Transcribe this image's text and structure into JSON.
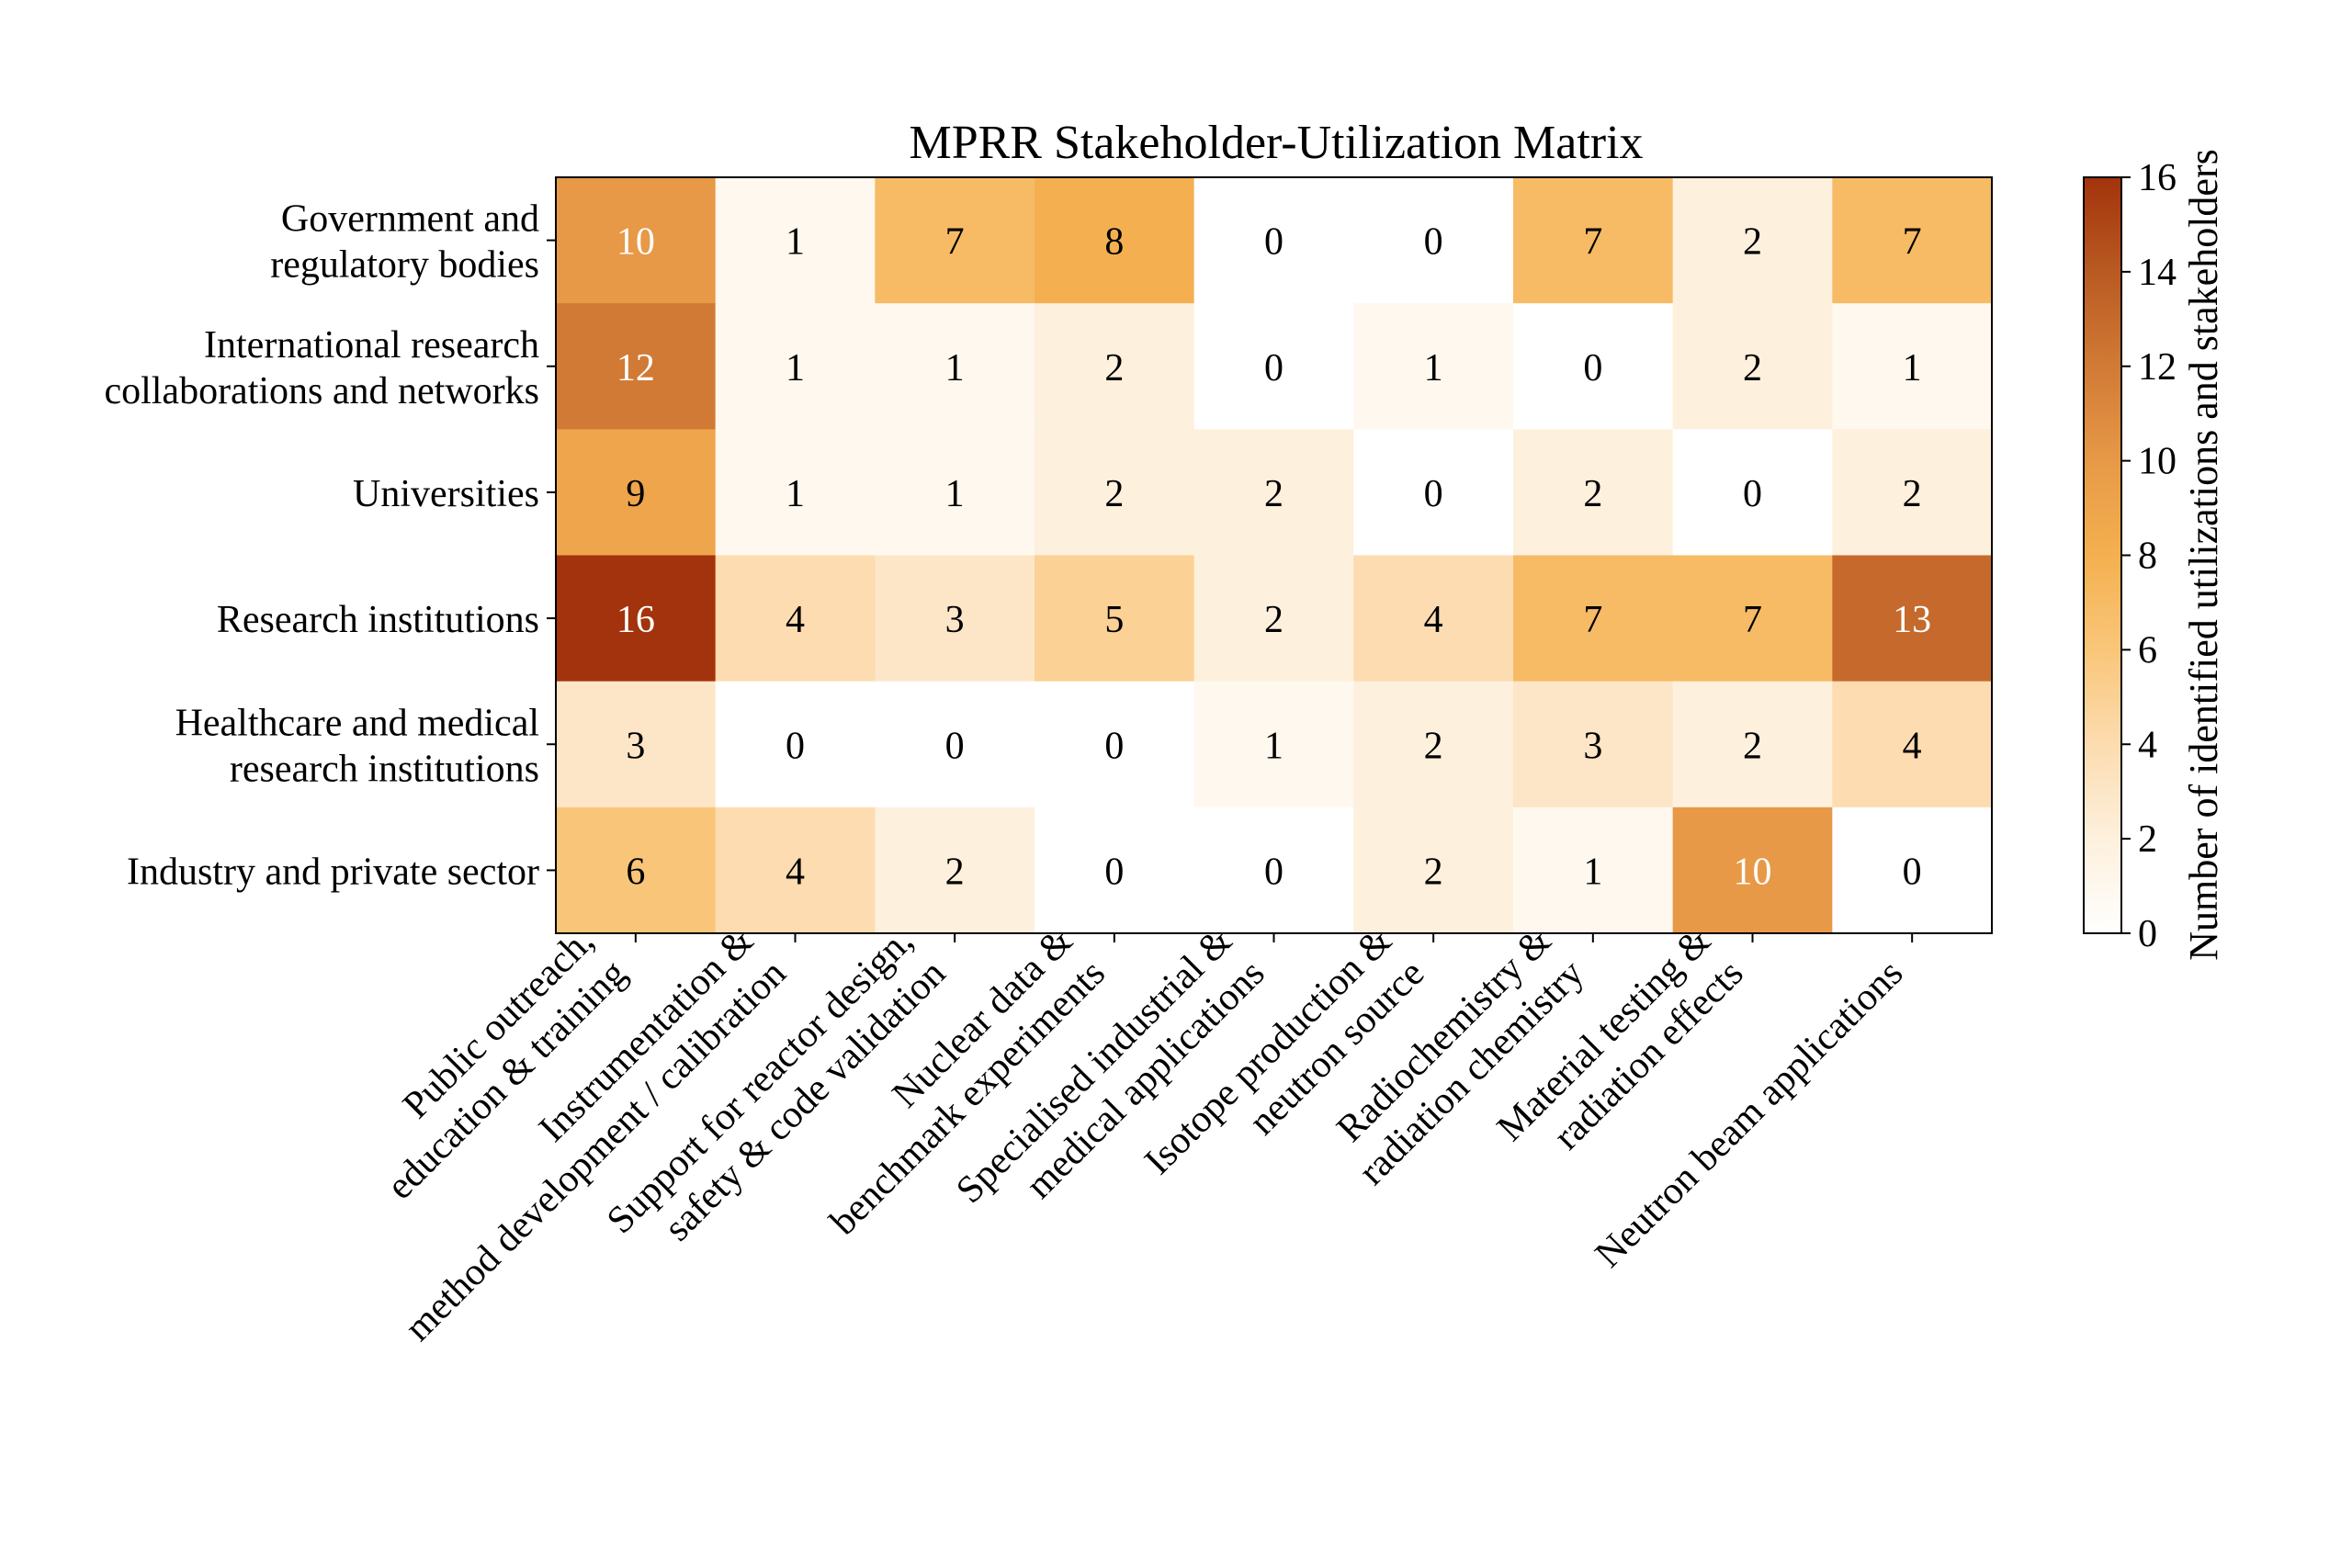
{
  "chart_data": {
    "type": "heatmap",
    "title": "MPRR Stakeholder-Utilization Matrix",
    "rows": [
      [
        "Government and",
        "regulatory bodies"
      ],
      [
        "International research",
        "collaborations and networks"
      ],
      [
        "Universities"
      ],
      [
        "Research institutions"
      ],
      [
        "Healthcare and medical",
        "research institutions"
      ],
      [
        "Industry and private sector"
      ]
    ],
    "columns": [
      [
        "Public outreach,",
        "education & training"
      ],
      [
        "Instrumentation &",
        "method development / calibration"
      ],
      [
        "Support for reactor design,",
        "safety & code validation"
      ],
      [
        "Nuclear data &",
        "benchmark experiments"
      ],
      [
        "Specialised industrial &",
        "medical applications"
      ],
      [
        "Isotope production &",
        "neutron source"
      ],
      [
        "Radiochemistry &",
        "radiation chemistry"
      ],
      [
        "Material testing &",
        "radiation effects"
      ],
      [
        "Neutron beam applications"
      ]
    ],
    "values": [
      [
        10,
        1,
        7,
        8,
        0,
        0,
        7,
        2,
        7
      ],
      [
        12,
        1,
        1,
        2,
        0,
        1,
        0,
        2,
        1
      ],
      [
        9,
        1,
        1,
        2,
        2,
        0,
        2,
        0,
        2
      ],
      [
        16,
        4,
        3,
        5,
        2,
        4,
        7,
        7,
        13
      ],
      [
        3,
        0,
        0,
        0,
        1,
        2,
        3,
        2,
        4
      ],
      [
        6,
        4,
        2,
        0,
        0,
        2,
        1,
        10,
        0
      ]
    ],
    "colorbar": {
      "label": "Number of identified utilizations and stakeholders",
      "range": [
        0,
        16
      ],
      "ticks": [
        "0",
        "2",
        "4",
        "6",
        "8",
        "10",
        "12",
        "14",
        "16"
      ]
    },
    "colormap": "YlOrBr-like (white to orange to dark brown)",
    "grid": false
  }
}
